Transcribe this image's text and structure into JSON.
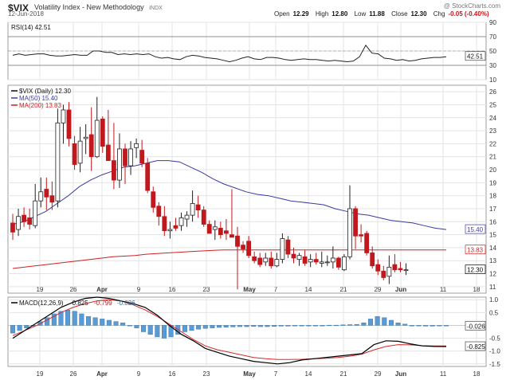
{
  "header": {
    "symbol": "$VIX",
    "name": "Volatility Index - New Methodology",
    "exchange": "INDX",
    "date": "12-Jun-2018",
    "watermark": "@ StockCharts.com",
    "open_label": "Open",
    "open": "12.29",
    "high_label": "High",
    "high": "12.80",
    "low_label": "Low",
    "low": "11.88",
    "close_label": "Close",
    "close": "12.30",
    "chg_label": "Chg",
    "chg": "-0.05 (-0.40%)"
  },
  "colors": {
    "up": "#222222",
    "down": "#c0181c",
    "ma50": "#3a3aa0",
    "ma200": "#cc2222",
    "macd_hist": "#5b9bd5",
    "panel_bg": "#ffffff",
    "grid": "#e4e4e4"
  },
  "chart_data": [
    {
      "panel": "rsi",
      "type": "line",
      "legend": "RSI(14) 42.51",
      "ylim": [
        10,
        90
      ],
      "yticks": [
        10,
        30,
        50,
        70,
        90
      ],
      "guides": [
        30,
        50,
        70
      ],
      "last_value": "42.51",
      "values": [
        44,
        46,
        44,
        45,
        46,
        46,
        44,
        43,
        43,
        44,
        45,
        44,
        44,
        50,
        50,
        48,
        48,
        45,
        46,
        45,
        46,
        45,
        46,
        42,
        40,
        41,
        39,
        38,
        42,
        44,
        43,
        41,
        40,
        39,
        37,
        35,
        37,
        40,
        42,
        39,
        38,
        41,
        41,
        40,
        38,
        37,
        38,
        39,
        38,
        38,
        37,
        36,
        37,
        36,
        35,
        36,
        42,
        58,
        47,
        46,
        40,
        39,
        37,
        38,
        36,
        37,
        39,
        40,
        41,
        41,
        42
      ]
    },
    {
      "panel": "price",
      "type": "candlestick",
      "legend": [
        "$VIX (Daily) 12.30",
        "MA(50) 15.40",
        "MA(200) 13.83"
      ],
      "ylim": [
        10.5,
        26.5
      ],
      "yticks": [
        11,
        12,
        13,
        14,
        15,
        16,
        17,
        18,
        19,
        20,
        21,
        22,
        23,
        24,
        25,
        26
      ],
      "last_labels": {
        "ma50": "15.40",
        "ma200": "13.83",
        "close": "12.30"
      },
      "candles": [
        [
          15.9,
          16.6,
          14.6,
          15.2
        ],
        [
          15.4,
          17.0,
          14.9,
          16.4
        ],
        [
          16.5,
          17.1,
          15.6,
          16.0
        ],
        [
          16.3,
          17.0,
          15.4,
          15.8
        ],
        [
          15.7,
          18.9,
          15.5,
          17.6
        ],
        [
          17.6,
          19.4,
          17.1,
          18.3
        ],
        [
          18.5,
          19.4,
          16.9,
          17.9
        ],
        [
          18.0,
          19.1,
          16.9,
          17.5
        ],
        [
          17.6,
          24.7,
          17.1,
          23.6
        ],
        [
          23.6,
          25.0,
          22.0,
          24.6
        ],
        [
          24.6,
          25.2,
          21.8,
          22.4
        ],
        [
          22.0,
          22.6,
          20.0,
          20.4
        ],
        [
          20.5,
          23.3,
          19.8,
          22.2
        ],
        [
          22.4,
          23.5,
          21.2,
          22.5
        ],
        [
          22.7,
          24.8,
          19.9,
          21.0
        ],
        [
          21.0,
          25.6,
          20.9,
          23.8
        ],
        [
          23.9,
          24.1,
          21.3,
          21.8
        ],
        [
          21.9,
          24.6,
          20.8,
          20.7
        ],
        [
          20.7,
          23.6,
          18.5,
          19.2
        ],
        [
          19.2,
          22.8,
          18.6,
          21.6
        ],
        [
          21.6,
          22.0,
          18.9,
          20.3
        ],
        [
          20.3,
          22.2,
          19.6,
          21.6
        ],
        [
          21.7,
          22.4,
          20.9,
          22.0
        ],
        [
          21.5,
          22.3,
          20.2,
          20.5
        ],
        [
          20.5,
          20.9,
          18.2,
          18.4
        ],
        [
          18.3,
          18.7,
          16.7,
          17.1
        ],
        [
          17.2,
          17.5,
          15.7,
          16.4
        ],
        [
          16.4,
          17.2,
          14.9,
          15.3
        ],
        [
          15.3,
          16.0,
          14.7,
          15.4
        ],
        [
          15.7,
          16.3,
          15.3,
          15.5
        ],
        [
          15.7,
          16.7,
          15.3,
          16.3
        ],
        [
          16.2,
          16.8,
          15.6,
          16.5
        ],
        [
          16.5,
          18.4,
          16.0,
          17.4
        ],
        [
          17.3,
          18.0,
          16.3,
          16.9
        ],
        [
          16.9,
          17.2,
          15.6,
          15.8
        ],
        [
          15.8,
          16.1,
          15.1,
          15.1
        ],
        [
          15.4,
          16.1,
          14.6,
          15.6
        ],
        [
          15.5,
          16.0,
          14.7,
          15.0
        ],
        [
          15.3,
          16.2,
          14.6,
          15.1
        ],
        [
          15.0,
          18.5,
          14.9,
          14.8
        ],
        [
          14.9,
          15.6,
          10.8,
          14.1
        ],
        [
          14.2,
          14.5,
          13.6,
          13.9
        ],
        [
          14.5,
          14.9,
          13.2,
          13.4
        ],
        [
          13.3,
          13.7,
          12.8,
          13.0
        ],
        [
          13.2,
          13.6,
          12.5,
          12.7
        ],
        [
          12.9,
          13.6,
          12.6,
          13.2
        ],
        [
          13.2,
          13.7,
          12.4,
          12.6
        ],
        [
          12.6,
          13.6,
          12.5,
          13.1
        ],
        [
          13.1,
          15.1,
          12.8,
          14.7
        ],
        [
          14.6,
          14.9,
          13.2,
          13.5
        ],
        [
          13.5,
          14.0,
          12.8,
          13.2
        ],
        [
          13.1,
          13.6,
          12.6,
          13.4
        ],
        [
          13.3,
          13.8,
          12.6,
          12.8
        ],
        [
          12.9,
          13.5,
          12.5,
          13.1
        ],
        [
          13.1,
          13.6,
          12.7,
          12.9
        ],
        [
          12.8,
          13.7,
          12.5,
          12.9
        ],
        [
          12.9,
          13.4,
          12.6,
          12.9
        ],
        [
          12.9,
          14.1,
          12.4,
          13.2
        ],
        [
          13.2,
          13.3,
          12.3,
          12.5
        ],
        [
          12.3,
          13.5,
          12.2,
          13.3
        ],
        [
          13.3,
          18.8,
          13.1,
          17.0
        ],
        [
          17.0,
          17.2,
          13.9,
          14.9
        ],
        [
          15.0,
          15.8,
          14.4,
          14.9
        ],
        [
          15.1,
          15.3,
          13.4,
          13.6
        ],
        [
          13.6,
          14.1,
          12.4,
          12.6
        ],
        [
          12.7,
          13.1,
          11.9,
          12.2
        ],
        [
          12.2,
          12.6,
          11.5,
          11.7
        ],
        [
          11.8,
          13.4,
          11.2,
          12.5
        ],
        [
          12.7,
          13.5,
          12.1,
          12.3
        ],
        [
          12.4,
          12.9,
          12.1,
          12.3
        ],
        [
          12.3,
          12.8,
          11.9,
          12.3
        ]
      ],
      "ma50": [
        15.8,
        16.0,
        16.4,
        16.8,
        17.4,
        18.0,
        18.7,
        19.2,
        19.6,
        19.9,
        20.2,
        20.3,
        20.5,
        20.7,
        20.7,
        20.6,
        20.2,
        19.8,
        19.3,
        18.9,
        18.6,
        18.3,
        18.1,
        18.0,
        17.8,
        17.6,
        17.5,
        17.4,
        17.3,
        17.0,
        16.8,
        16.6,
        16.5,
        16.3,
        16.1,
        16.0,
        15.9,
        15.7,
        15.5,
        15.4
      ],
      "ma200": [
        12.4,
        12.5,
        12.6,
        12.7,
        12.8,
        12.9,
        13.0,
        13.1,
        13.2,
        13.3,
        13.35,
        13.4,
        13.5,
        13.55,
        13.6,
        13.65,
        13.7,
        13.75,
        13.8,
        13.83,
        13.83,
        13.83,
        13.83,
        13.83,
        13.83,
        13.83,
        13.83,
        13.82,
        13.82,
        13.82,
        13.83,
        13.83,
        13.83,
        13.83,
        13.83,
        13.83,
        13.83,
        13.83,
        13.83,
        13.83
      ]
    },
    {
      "panel": "macd",
      "type": "line+bar",
      "legend": [
        "MACD(12,26,9)",
        "-0.825",
        "-0.799",
        "-0.026"
      ],
      "ylim": [
        -1.6,
        1.1
      ],
      "yticks": [
        1.0,
        0.5,
        -0.5,
        -1.0,
        -1.5
      ],
      "last_labels": {
        "histogram": "-0.026",
        "macd": "-0.825"
      },
      "histogram": [
        -0.3,
        -0.2,
        -0.1,
        0.0,
        0.15,
        0.3,
        0.45,
        0.55,
        0.6,
        0.55,
        0.45,
        0.35,
        0.3,
        0.25,
        0.2,
        0.15,
        0.1,
        0.0,
        -0.1,
        -0.25,
        -0.35,
        -0.45,
        -0.5,
        -0.45,
        -0.35,
        -0.25,
        -0.2,
        -0.15,
        -0.12,
        -0.1,
        -0.08,
        -0.07,
        -0.06,
        -0.05,
        -0.05,
        -0.04,
        -0.05,
        -0.05,
        -0.04,
        -0.03,
        -0.03,
        -0.02,
        -0.02,
        -0.01,
        0.0,
        0.0,
        0.01,
        0.01,
        0.02,
        0.03,
        0.04,
        0.1,
        0.25,
        0.35,
        0.3,
        0.2,
        0.1,
        0.05,
        0.0,
        -0.02,
        -0.03,
        -0.03,
        -0.02,
        -0.026
      ],
      "macd": [
        -0.5,
        -0.2,
        0.1,
        0.4,
        0.7,
        0.9,
        1.05,
        1.1,
        1.05,
        0.95,
        0.85,
        0.7,
        0.4,
        0.0,
        -0.35,
        -0.6,
        -0.9,
        -1.05,
        -1.2,
        -1.3,
        -1.4,
        -1.45,
        -1.5,
        -1.45,
        -1.35,
        -1.3,
        -1.25,
        -1.2,
        -1.15,
        -1.1,
        -0.75,
        -0.6,
        -0.62,
        -0.72,
        -0.8,
        -0.82,
        -0.825
      ],
      "signal": [
        -0.4,
        -0.2,
        0.0,
        0.25,
        0.5,
        0.7,
        0.85,
        0.95,
        1.0,
        0.95,
        0.8,
        0.6,
        0.35,
        0.05,
        -0.25,
        -0.55,
        -0.8,
        -0.95,
        -1.05,
        -1.15,
        -1.25,
        -1.3,
        -1.33,
        -1.33,
        -1.32,
        -1.3,
        -1.28,
        -1.25,
        -1.2,
        -1.12,
        -0.95,
        -0.82,
        -0.75,
        -0.76,
        -0.79,
        -0.8,
        -0.799
      ]
    },
    {
      "panel": "xaxis",
      "type": "axis",
      "x_ticks": [
        "19",
        "26",
        "Apr",
        "9",
        "16",
        "23",
        "May",
        "7",
        "14",
        "21",
        "29",
        "Jun",
        "11",
        "18"
      ]
    }
  ]
}
